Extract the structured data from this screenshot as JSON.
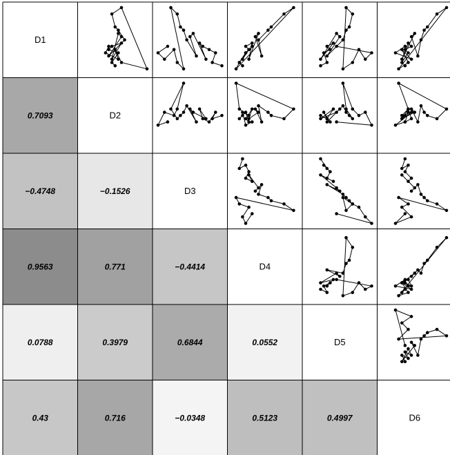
{
  "chart_data": {
    "type": "scatter",
    "variables": [
      "D1",
      "D2",
      "D3",
      "D4",
      "D5",
      "D6"
    ],
    "correlations": [
      {
        "row": "D2",
        "col": "D1",
        "value": "0.7093"
      },
      {
        "row": "D3",
        "col": "D1",
        "value": "−0.4748"
      },
      {
        "row": "D3",
        "col": "D2",
        "value": "−0.1526"
      },
      {
        "row": "D4",
        "col": "D1",
        "value": "0.9563"
      },
      {
        "row": "D4",
        "col": "D2",
        "value": "0.771"
      },
      {
        "row": "D4",
        "col": "D3",
        "value": "−0.4414"
      },
      {
        "row": "D5",
        "col": "D1",
        "value": "0.0788"
      },
      {
        "row": "D5",
        "col": "D2",
        "value": "0.3979"
      },
      {
        "row": "D5",
        "col": "D3",
        "value": "0.6844"
      },
      {
        "row": "D5",
        "col": "D4",
        "value": "0.0552"
      },
      {
        "row": "D6",
        "col": "D1",
        "value": "0.43"
      },
      {
        "row": "D6",
        "col": "D2",
        "value": "0.716"
      },
      {
        "row": "D6",
        "col": "D3",
        "value": "−0.0348"
      },
      {
        "row": "D6",
        "col": "D4",
        "value": "0.5123"
      },
      {
        "row": "D6",
        "col": "D5",
        "value": "0.4997"
      }
    ],
    "series_values": {
      "D1": [
        0.1,
        0.15,
        0.3,
        0.35,
        0.4,
        0.45,
        0.2,
        0.6,
        0.55,
        0.25,
        0.5,
        0.65,
        0.7,
        0.9,
        1.0,
        0.05,
        0.15,
        0.35,
        0.2,
        0.3,
        0.4
      ],
      "D2": [
        0.5,
        0.45,
        0.55,
        0.4,
        0.45,
        0.6,
        0.45,
        0.55,
        0.6,
        0.4,
        0.65,
        0.55,
        0.5,
        0.45,
        0.6,
        1.0,
        0.6,
        0.5,
        0.55,
        0.35,
        0.4
      ],
      "D3": [
        1.0,
        0.85,
        0.9,
        0.8,
        0.7,
        0.65,
        0.75,
        0.55,
        0.5,
        0.6,
        0.45,
        0.4,
        0.35,
        0.3,
        0.2,
        0.4,
        0.3,
        0.25,
        0.1,
        0.0,
        0.15
      ],
      "D4": [
        0.15,
        0.1,
        0.2,
        0.25,
        0.2,
        0.3,
        0.25,
        0.4,
        0.35,
        0.45,
        0.4,
        0.55,
        0.6,
        0.8,
        0.95,
        0.05,
        0.1,
        0.25,
        0.15,
        0.2,
        0.3
      ],
      "D5": [
        0.2,
        0.3,
        0.25,
        0.35,
        0.3,
        0.4,
        0.2,
        0.45,
        0.5,
        0.3,
        0.55,
        0.6,
        0.65,
        0.7,
        0.6,
        0.55,
        0.7,
        0.8,
        0.9,
        1.0,
        0.45
      ],
      "D6": [
        0.35,
        0.3,
        0.4,
        0.35,
        0.45,
        0.4,
        0.3,
        0.5,
        0.45,
        0.55,
        0.6,
        0.65,
        0.7,
        0.85,
        1.0,
        0.25,
        0.4,
        0.3,
        0.45,
        0.2,
        0.35
      ]
    }
  }
}
